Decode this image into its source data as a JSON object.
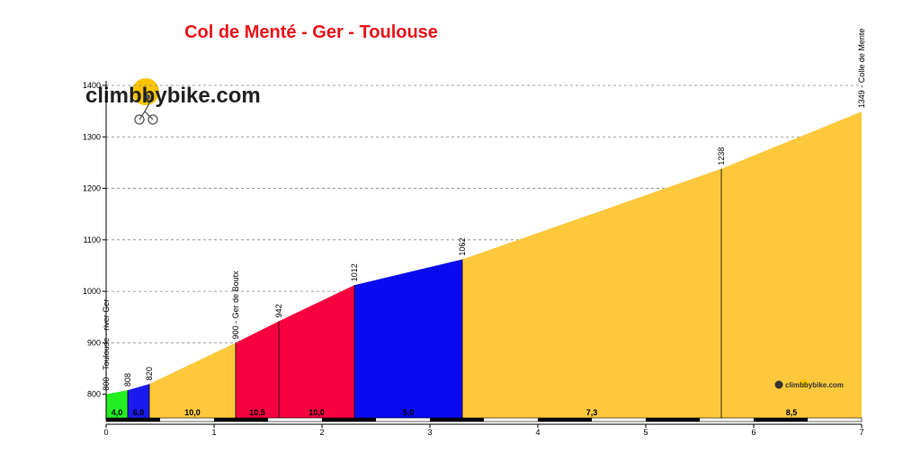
{
  "chart_data": {
    "type": "area",
    "title": "Col de Menté - Ger - Toulouse",
    "xlim": [
      0,
      7
    ],
    "ylim": [
      754,
      1400
    ],
    "grid": true,
    "x_ticks": [
      0,
      1,
      2,
      3,
      4,
      5,
      6,
      7
    ],
    "y_ticks": [
      800,
      900,
      1000,
      1100,
      1200,
      1300,
      1400
    ],
    "profile": [
      {
        "x": 0,
        "y": 800
      },
      {
        "x": 0.2,
        "y": 808
      },
      {
        "x": 0.4,
        "y": 820
      },
      {
        "x": 1.2,
        "y": 900
      },
      {
        "x": 1.6,
        "y": 942
      },
      {
        "x": 2.3,
        "y": 1012
      },
      {
        "x": 3.3,
        "y": 1062
      },
      {
        "x": 5.7,
        "y": 1238
      },
      {
        "x": 7.0,
        "y": 1349
      }
    ],
    "segments": [
      {
        "x0": 0,
        "x1": 0.2,
        "label": "4,0",
        "color": "#22ee22"
      },
      {
        "x0": 0.2,
        "x1": 0.4,
        "label": "6,0",
        "color": "#1a1aee"
      },
      {
        "x0": 0.4,
        "x1": 1.2,
        "label": "10,0",
        "color": "#fdc83b"
      },
      {
        "x0": 1.2,
        "x1": 1.6,
        "label": "10,5",
        "color": "#f80040"
      },
      {
        "x0": 1.6,
        "x1": 2.3,
        "label": "10,0",
        "color": "#f80040"
      },
      {
        "x0": 2.3,
        "x1": 3.3,
        "label": "5,0",
        "color": "#0a0af0"
      },
      {
        "x0": 3.3,
        "x1": 5.7,
        "label": "7,3",
        "color": "#fdc83b"
      },
      {
        "x0": 5.7,
        "x1": 7.0,
        "label": "8,5",
        "color": "#fdc83b"
      }
    ],
    "annotations": [
      {
        "x": 0,
        "y": 800,
        "text": "800 - Toulouse - river Ger"
      },
      {
        "x": 0.2,
        "y": 808,
        "text": "808"
      },
      {
        "x": 0.4,
        "y": 820,
        "text": "820"
      },
      {
        "x": 1.2,
        "y": 900,
        "text": "900 - Ger de Boutx"
      },
      {
        "x": 1.6,
        "y": 942,
        "text": "942"
      },
      {
        "x": 2.3,
        "y": 1012,
        "text": "1012"
      },
      {
        "x": 3.3,
        "y": 1062,
        "text": "1062"
      },
      {
        "x": 5.7,
        "y": 1238,
        "text": "1238"
      },
      {
        "x": 7.0,
        "y": 1349,
        "text": "1349 - Colle de Mente"
      }
    ]
  },
  "logo": {
    "main_text": "climbbybike.com",
    "small_text": "climbbybike.com"
  },
  "colors": {
    "axis": "#000000",
    "grid": "#888888"
  }
}
